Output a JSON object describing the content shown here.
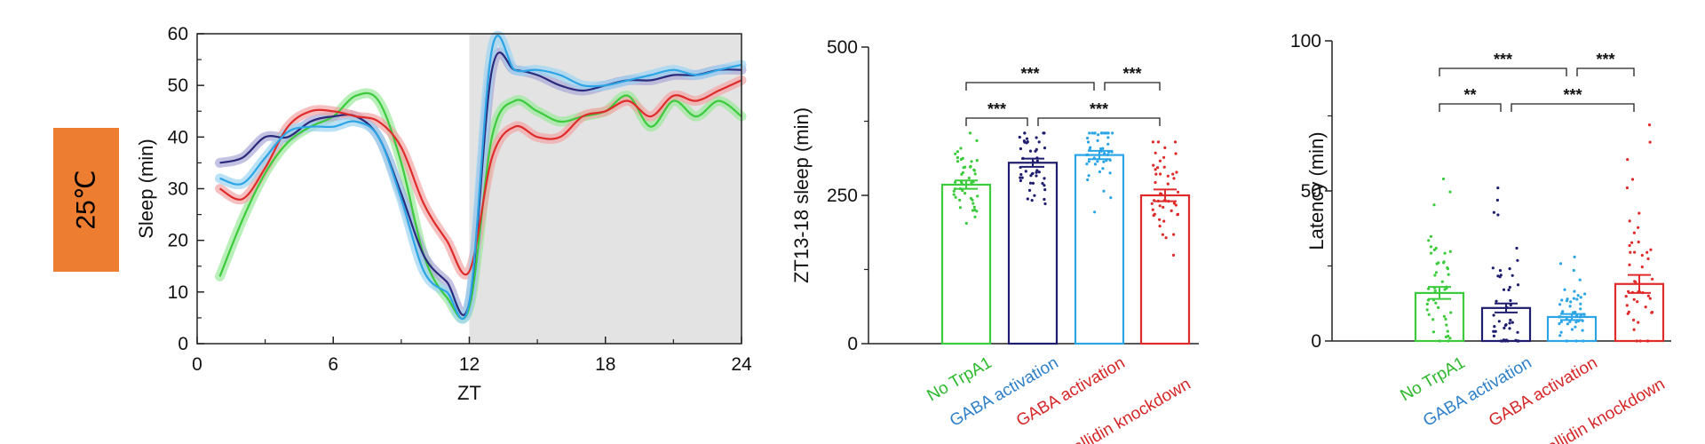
{
  "condition_badge": {
    "text": "25℃",
    "color": "#ED7D31"
  },
  "chart_data": [
    {
      "type": "line",
      "title": "",
      "xlabel": "ZT",
      "ylabel": "Sleep (min)",
      "xlim": [
        0,
        24
      ],
      "ylim": [
        0,
        60
      ],
      "xticks": [
        "0",
        "6",
        "12",
        "18",
        "24"
      ],
      "yticks": [
        "0",
        "10",
        "20",
        "30",
        "40",
        "50",
        "60"
      ],
      "shaded_region": {
        "from": 12,
        "to": 24,
        "color": "#E3E3E3"
      },
      "series": [
        {
          "name": "No TrpA1",
          "color": "#3CCB3C",
          "band_color": "#9BE89B",
          "x": [
            1,
            2,
            3,
            4,
            5,
            6,
            7,
            8,
            9,
            10,
            11,
            12,
            13,
            14,
            15,
            16,
            17,
            18,
            19,
            20,
            21,
            22,
            23,
            24
          ],
          "y": [
            13,
            24,
            33,
            39,
            42,
            44,
            48,
            47,
            35,
            17,
            9,
            7,
            40,
            47,
            45,
            43,
            44,
            45,
            48,
            42,
            47,
            44,
            47,
            44
          ]
        },
        {
          "name": "GABA activation",
          "color": "#2B2A7C",
          "band_color": "#A9A8D6",
          "x": [
            1,
            2,
            3,
            4,
            5,
            6,
            7,
            8,
            9,
            10,
            11,
            12,
            13,
            14,
            15,
            16,
            17,
            18,
            19,
            20,
            21,
            22,
            23,
            24
          ],
          "y": [
            35,
            36,
            40,
            40,
            43,
            44,
            44,
            40,
            29,
            17,
            12,
            8,
            53,
            53,
            52,
            50,
            49,
            50,
            51,
            51,
            52,
            52,
            53,
            53
          ]
        },
        {
          "name": "GABA activation + pallidin knockdown",
          "color": "#E02B2B",
          "band_color": "#F2A5A5",
          "x": [
            1,
            2,
            3,
            4,
            5,
            6,
            7,
            8,
            9,
            10,
            11,
            12,
            13,
            14,
            15,
            16,
            17,
            18,
            19,
            20,
            21,
            22,
            23,
            24
          ],
          "y": [
            30,
            28,
            34,
            42,
            45,
            45,
            44,
            43,
            38,
            27,
            20,
            14,
            36,
            42,
            40,
            40,
            44,
            45,
            47,
            44,
            48,
            47,
            49,
            51
          ]
        },
        {
          "name": "GABA activation (blue)",
          "color": "#2BA5E5",
          "band_color": "#9ED4F2",
          "x": [
            1,
            2,
            3,
            4,
            5,
            6,
            7,
            8,
            9,
            10,
            11,
            12,
            13,
            14,
            15,
            16,
            17,
            18,
            19,
            20,
            21,
            22,
            23,
            24
          ],
          "y": [
            32,
            31,
            36,
            41,
            42,
            42,
            43,
            40,
            28,
            14,
            10,
            8,
            57,
            53,
            53,
            52,
            50,
            50,
            51,
            52,
            53,
            52,
            53,
            54
          ]
        }
      ]
    },
    {
      "type": "bar",
      "title": "",
      "xlabel": "",
      "ylabel": "ZT13-18 sleep (min)",
      "ylim": [
        0,
        500
      ],
      "yticks": [
        "0",
        "250",
        "500"
      ],
      "categories": [
        "No TrpA1",
        "GABA activation",
        "GABA activation",
        "GABA activation + pallidin knockdown"
      ],
      "category_labels": [
        {
          "text": "No TrpA1",
          "color": "#2DB82D"
        },
        {
          "text": "GABA activation",
          "color": "#2F80C9"
        },
        {
          "text": "GABA activation",
          "color": "#D62728"
        },
        {
          "text": "pallidin knockdown",
          "color": "#D62728"
        }
      ],
      "bar_colors": [
        "#3CCB3C",
        "#1F1D6E",
        "#2BA5E5",
        "#E02B2B"
      ],
      "values": [
        268,
        305,
        318,
        250
      ],
      "errors": [
        7,
        7,
        7,
        10
      ],
      "point_ranges": [
        [
          195,
          355
        ],
        [
          190,
          355
        ],
        [
          165,
          355
        ],
        [
          95,
          340
        ]
      ],
      "significance": [
        {
          "from": 0,
          "to": 2,
          "label": "***",
          "level": 2
        },
        {
          "from": 2,
          "to": 3,
          "label": "***",
          "level": 2
        },
        {
          "from": 0,
          "to": 1,
          "label": "***",
          "level": 1
        },
        {
          "from": 1,
          "to": 3,
          "label": "***",
          "level": 1
        }
      ]
    },
    {
      "type": "bar",
      "title": "",
      "xlabel": "",
      "ylabel": "Latency (min)",
      "ylim": [
        0,
        100
      ],
      "yticks": [
        "0",
        "50",
        "100"
      ],
      "categories": [
        "No TrpA1",
        "GABA activation",
        "GABA activation",
        "GABA activation + pallidin knockdown"
      ],
      "category_labels": [
        {
          "text": "No TrpA1",
          "color": "#2DB82D"
        },
        {
          "text": "GABA activation",
          "color": "#2F80C9"
        },
        {
          "text": "GABA activation",
          "color": "#D62728"
        },
        {
          "text": "pallidin knockdown",
          "color": "#D62728"
        }
      ],
      "bar_colors": [
        "#3CCB3C",
        "#1F1D6E",
        "#2BA5E5",
        "#E02B2B"
      ],
      "values": [
        16,
        11,
        8,
        19
      ],
      "errors": [
        2,
        1.5,
        1,
        3
      ],
      "point_ranges": [
        [
          0,
          54
        ],
        [
          0,
          51
        ],
        [
          0,
          28
        ],
        [
          0,
          72
        ]
      ],
      "significance": [
        {
          "from": 0,
          "to": 2,
          "label": "***",
          "level": 2
        },
        {
          "from": 2,
          "to": 3,
          "label": "***",
          "level": 2
        },
        {
          "from": 0,
          "to": 1,
          "label": "**",
          "level": 1
        },
        {
          "from": 1,
          "to": 3,
          "label": "***",
          "level": 1
        }
      ]
    }
  ]
}
